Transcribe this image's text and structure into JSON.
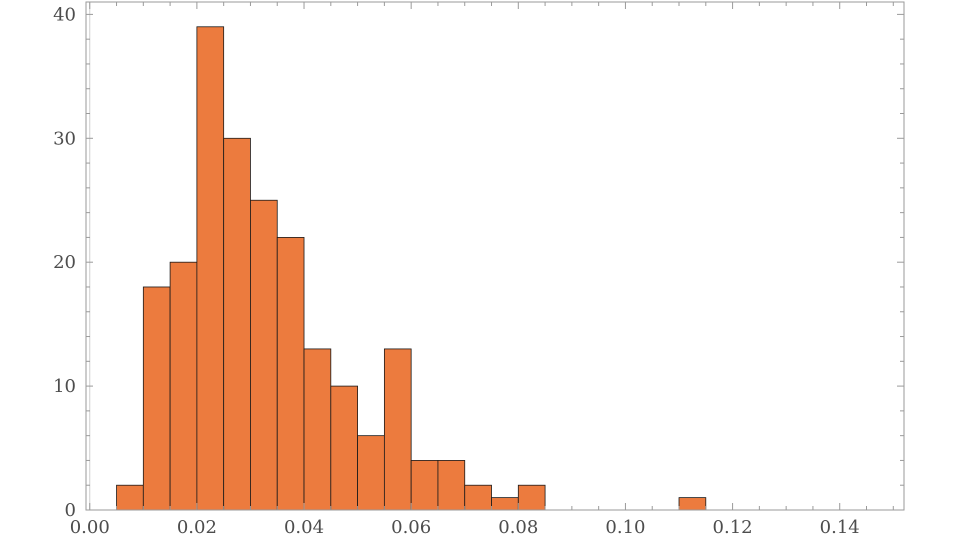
{
  "chart_data": {
    "type": "bar",
    "subtype": "histogram",
    "bin_width": 0.005,
    "bins": [
      {
        "x0": 0.005,
        "x1": 0.01,
        "count": 2
      },
      {
        "x0": 0.01,
        "x1": 0.015,
        "count": 18
      },
      {
        "x0": 0.015,
        "x1": 0.02,
        "count": 20
      },
      {
        "x0": 0.02,
        "x1": 0.025,
        "count": 39
      },
      {
        "x0": 0.025,
        "x1": 0.03,
        "count": 30
      },
      {
        "x0": 0.03,
        "x1": 0.035,
        "count": 25
      },
      {
        "x0": 0.035,
        "x1": 0.04,
        "count": 22
      },
      {
        "x0": 0.04,
        "x1": 0.045,
        "count": 13
      },
      {
        "x0": 0.045,
        "x1": 0.05,
        "count": 10
      },
      {
        "x0": 0.05,
        "x1": 0.055,
        "count": 6
      },
      {
        "x0": 0.055,
        "x1": 0.06,
        "count": 13
      },
      {
        "x0": 0.06,
        "x1": 0.065,
        "count": 4
      },
      {
        "x0": 0.065,
        "x1": 0.07,
        "count": 4
      },
      {
        "x0": 0.07,
        "x1": 0.075,
        "count": 2
      },
      {
        "x0": 0.075,
        "x1": 0.08,
        "count": 1
      },
      {
        "x0": 0.08,
        "x1": 0.085,
        "count": 2
      },
      {
        "x0": 0.11,
        "x1": 0.115,
        "count": 1
      }
    ],
    "xlim": [
      -0.0007,
      0.152
    ],
    "ylim": [
      0,
      41
    ],
    "xticks": [
      "0.00",
      "0.02",
      "0.04",
      "0.06",
      "0.08",
      "0.10",
      "0.12",
      "0.14"
    ],
    "yticks": [
      "0",
      "10",
      "20",
      "30",
      "40"
    ],
    "bar_color": "#EC7B3E",
    "edge_color": "#1a1a1a",
    "grid": false,
    "legend": "none",
    "title": "",
    "xlabel": "",
    "ylabel": ""
  }
}
